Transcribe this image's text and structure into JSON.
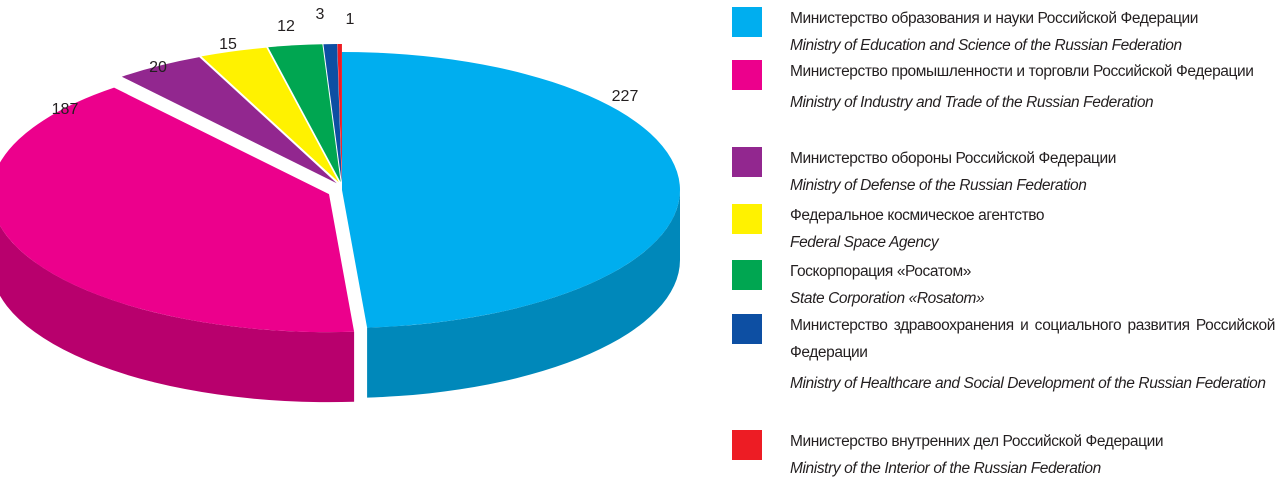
{
  "chart_data": {
    "type": "pie",
    "categories": [
      "Министерство образования и науки Российской Федерации",
      "Министерство промышленности и торговли Российской Федерации",
      "Министерство обороны Российской Федерации",
      "Федеральное космическое агентство",
      "Госкорпорация «Росатом»",
      "Министерство здравоохранения и социального развития Российской Федерации",
      "Министерство внутренних дел Российской Федерации"
    ],
    "categories_en": [
      "Ministry of Education and Science of the Russian Federation",
      "Ministry of Industry and Trade of the Russian Federation",
      "Ministry of Defense of the Russian Federation",
      "Federal Space Agency",
      "State Corporation «Rosatom»",
      "Ministry of Healthcare and Social Development of the Russian Federation",
      "Ministry of the Interior of the Russian Federation"
    ],
    "values": [
      227,
      187,
      20,
      15,
      12,
      3,
      1
    ],
    "colors": [
      "#00aeef",
      "#ec008c",
      "#92278f",
      "#fff200",
      "#00a651",
      "#0d4fa3",
      "#ed1c24"
    ],
    "legend": "right"
  }
}
